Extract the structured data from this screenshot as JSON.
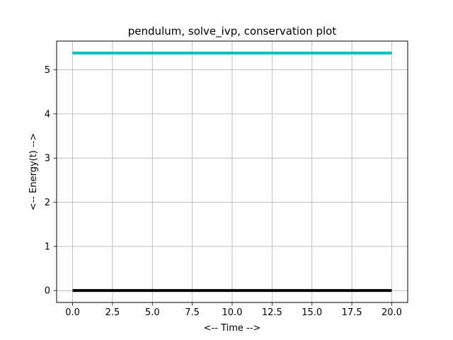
{
  "chart_data": {
    "type": "line",
    "title": "pendulum, solve_ivp, conservation plot",
    "xlabel": "<-- Time -->",
    "ylabel": "<-- Energy(t) -->",
    "xlim": [
      -1.0,
      21.0
    ],
    "ylim": [
      -0.27,
      5.65
    ],
    "xticks": [
      0.0,
      2.5,
      5.0,
      7.5,
      10.0,
      12.5,
      15.0,
      17.5,
      20.0
    ],
    "xtick_labels": [
      "0.0",
      "2.5",
      "5.0",
      "7.5",
      "10.0",
      "12.5",
      "15.0",
      "17.5",
      "20.0"
    ],
    "yticks": [
      0,
      1,
      2,
      3,
      4,
      5
    ],
    "ytick_labels": [
      "0",
      "1",
      "2",
      "3",
      "4",
      "5"
    ],
    "grid": true,
    "series": [
      {
        "x": [
          0,
          20
        ],
        "y": [
          5.38,
          5.38
        ],
        "color": "#00bfbf"
      },
      {
        "x": [
          0,
          20
        ],
        "y": [
          0.0,
          0.0
        ],
        "color": "#000000"
      }
    ]
  }
}
